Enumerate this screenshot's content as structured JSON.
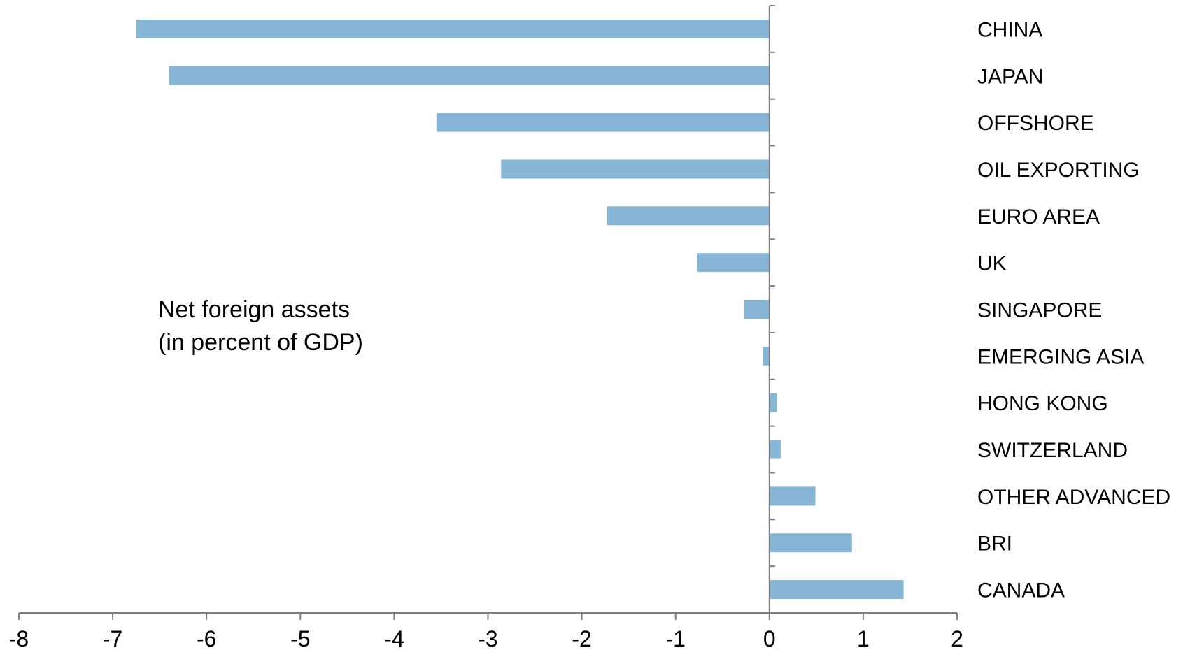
{
  "chart_data": {
    "type": "bar",
    "orientation": "horizontal",
    "title": "",
    "xlabel": "",
    "ylabel": "",
    "annotation": [
      "Net foreign assets",
      "(in percent of GDP)"
    ],
    "categories": [
      "CHINA",
      "JAPAN",
      "OFFSHORE",
      "OIL EXPORTING",
      "EURO AREA",
      "UK",
      "SINGAPORE",
      "EMERGING ASIA",
      "HONG KONG",
      "SWITZERLAND",
      "OTHER ADVANCED",
      "BRI",
      "CANADA"
    ],
    "values": [
      -6.75,
      -6.4,
      -3.55,
      -2.86,
      -1.73,
      -0.77,
      -0.27,
      -0.07,
      0.08,
      0.12,
      0.49,
      0.88,
      1.43
    ],
    "xlim": [
      -8,
      2
    ],
    "xticks": [
      -8,
      -7,
      -6,
      -5,
      -4,
      -3,
      -2,
      -1,
      0,
      1,
      2
    ],
    "grid": false,
    "legend": "none",
    "bar_color": "#86b5d5",
    "axis_color": "#7f7f7f"
  }
}
